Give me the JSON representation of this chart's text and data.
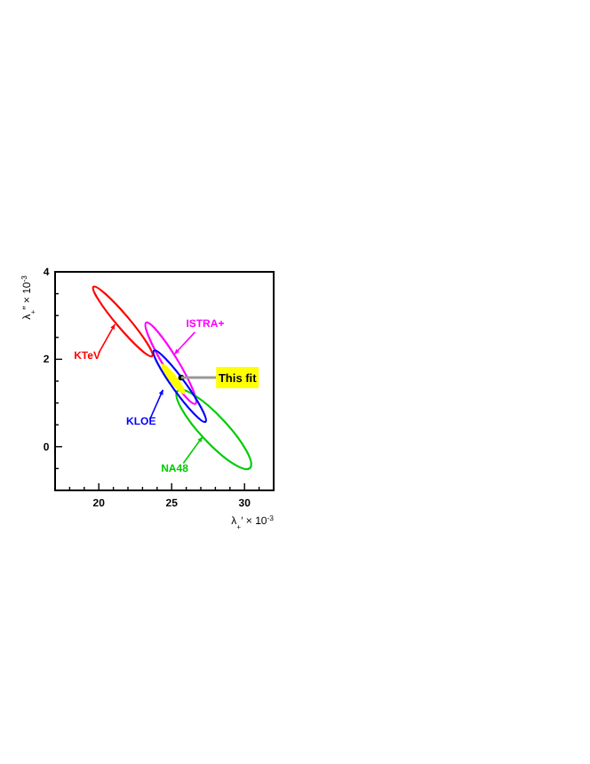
{
  "chart_data": {
    "type": "scatter",
    "xlabel": "λ$_{+}$′ × 10$^{-3}$",
    "ylabel": "λ$_{+}$″ × 10$^{-3}$",
    "xlim": [
      17,
      32
    ],
    "ylim": [
      -1,
      4
    ],
    "xticks": [
      {
        "value": 18,
        "label": null
      },
      {
        "value": 19,
        "label": null
      },
      20,
      {
        "value": 21,
        "label": null
      },
      {
        "value": 22,
        "label": null
      },
      {
        "value": 23,
        "label": null
      },
      {
        "value": 24,
        "label": null
      },
      25,
      {
        "value": 26,
        "label": null
      },
      {
        "value": 27,
        "label": null
      },
      {
        "value": 28,
        "label": null
      },
      {
        "value": 29,
        "label": null
      },
      30,
      {
        "value": 31,
        "label": null
      }
    ],
    "yticks": [
      {
        "value": -0.5,
        "label": null
      },
      0,
      {
        "value": 0.5,
        "label": null
      },
      {
        "value": 1,
        "label": null
      },
      {
        "value": 1.5,
        "label": null
      },
      2,
      {
        "value": 2.5,
        "label": null
      },
      {
        "value": 3,
        "label": null
      },
      {
        "value": 3.5,
        "label": null
      },
      4
    ],
    "legend": false,
    "grid": false,
    "marker": "circle",
    "annotations": [
      "KTeV",
      "ISTRA+",
      "NA48",
      "KLOE"
    ],
    "series": [
      {
        "name": "This fit",
        "color": "#000000",
        "x": [
          25.65
        ],
        "values": [
          1.58
        ]
      }
    ]
  }
}
